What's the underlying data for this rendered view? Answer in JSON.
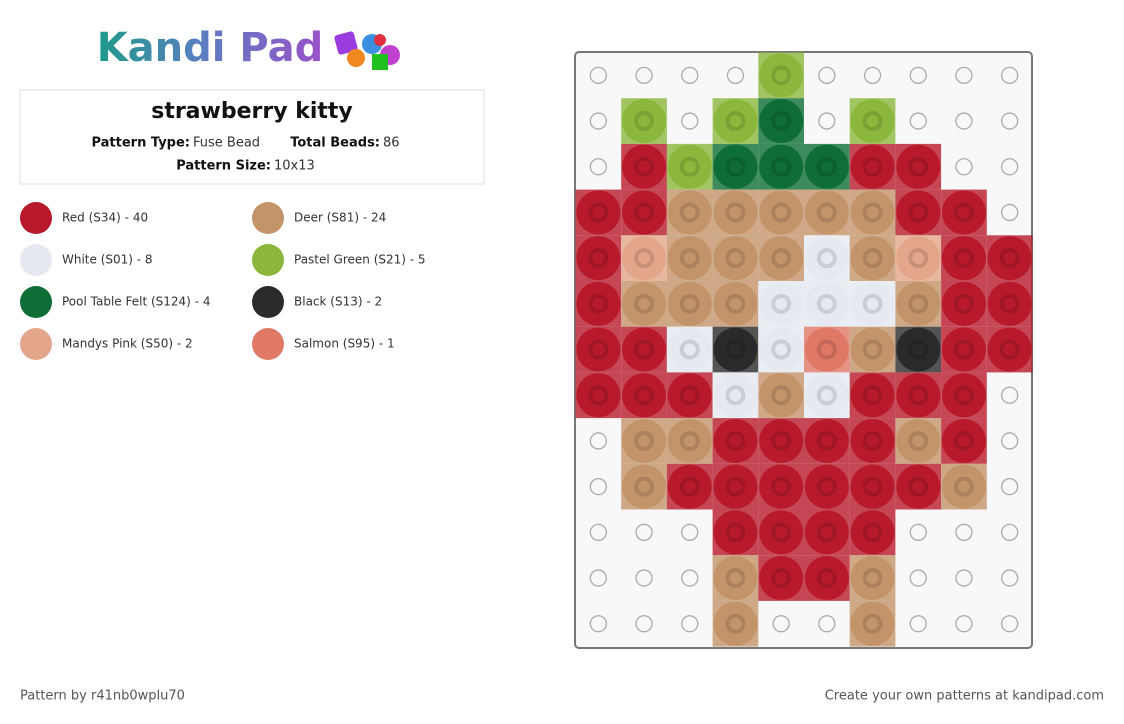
{
  "header": {
    "logo": "Kandi Pad",
    "title": "strawberry kitty",
    "type_label": "Pattern Type:",
    "type_value": "Fuse Bead",
    "beads_label": "Total Beads:",
    "beads_value": "86",
    "size_label": "Pattern Size:",
    "size_value": "10x13"
  },
  "legend": [
    {
      "label": "Red (S34) - 40",
      "color": "#b81a2c"
    },
    {
      "label": "Deer (S81) - 24",
      "color": "#c3946a"
    },
    {
      "label": "White (S01) - 8",
      "color": "#e6eaf0"
    },
    {
      "label": "Pastel Green (S21) - 5",
      "color": "#8bb83c"
    },
    {
      "label": "Pool Table Felt (S124) - 4",
      "color": "#0e6e35"
    },
    {
      "label": "Black (S13) - 2",
      "color": "#2a2a2c"
    },
    {
      "label": "Mandys Pink (S50) - 2",
      "color": "#e3a68a"
    },
    {
      "label": "Salmon (S95) - 1",
      "color": "#e07866"
    }
  ],
  "grid": [
    [
      null,
      null,
      null,
      null,
      "#8bb83c",
      null,
      null,
      null,
      null,
      null
    ],
    [
      null,
      "#8bb83c",
      null,
      "#8bb83c",
      "#0e6e35",
      null,
      "#8bb83c",
      null,
      null,
      null
    ],
    [
      null,
      "#b81a2c",
      "#8bb83c",
      "#0e6e35",
      "#0e6e35",
      "#0e6e35",
      "#b81a2c",
      "#b81a2c",
      null,
      null
    ],
    [
      "#b81a2c",
      "#b81a2c",
      "#c3946a",
      "#c3946a",
      "#c3946a",
      "#c3946a",
      "#c3946a",
      "#b81a2c",
      "#b81a2c",
      null
    ],
    [
      "#b81a2c",
      "#e3a68a",
      "#c3946a",
      "#c3946a",
      "#c3946a",
      "#e6eaf0",
      "#c3946a",
      "#e3a68a",
      "#b81a2c",
      "#b81a2c"
    ],
    [
      "#b81a2c",
      "#c3946a",
      "#c3946a",
      "#c3946a",
      "#e6eaf0",
      "#e6eaf0",
      "#e6eaf0",
      "#c3946a",
      "#b81a2c",
      "#b81a2c"
    ],
    [
      "#b81a2c",
      "#b81a2c",
      "#e6eaf0",
      "#2a2a2c",
      "#e6eaf0",
      "#e07866",
      "#c3946a",
      "#2a2a2c",
      "#b81a2c",
      "#b81a2c"
    ],
    [
      "#b81a2c",
      "#b81a2c",
      "#b81a2c",
      "#e6eaf0",
      "#c3946a",
      "#e6eaf0",
      "#b81a2c",
      "#b81a2c",
      "#b81a2c",
      null
    ],
    [
      null,
      "#c3946a",
      "#c3946a",
      "#b81a2c",
      "#b81a2c",
      "#b81a2c",
      "#b81a2c",
      "#c3946a",
      "#b81a2c",
      null
    ],
    [
      null,
      "#c3946a",
      "#b81a2c",
      "#b81a2c",
      "#b81a2c",
      "#b81a2c",
      "#b81a2c",
      "#b81a2c",
      "#c3946a",
      null
    ],
    [
      null,
      null,
      null,
      "#b81a2c",
      "#b81a2c",
      "#b81a2c",
      "#b81a2c",
      null,
      null,
      null
    ],
    [
      null,
      null,
      null,
      "#c3946a",
      "#b81a2c",
      "#b81a2c",
      "#c3946a",
      null,
      null,
      null
    ],
    [
      null,
      null,
      null,
      "#c3946a",
      null,
      null,
      "#c3946a",
      null,
      null,
      null
    ]
  ],
  "footer": {
    "author": "Pattern by r41nb0wplu70",
    "promo": "Create your own patterns at kandipad.com"
  }
}
